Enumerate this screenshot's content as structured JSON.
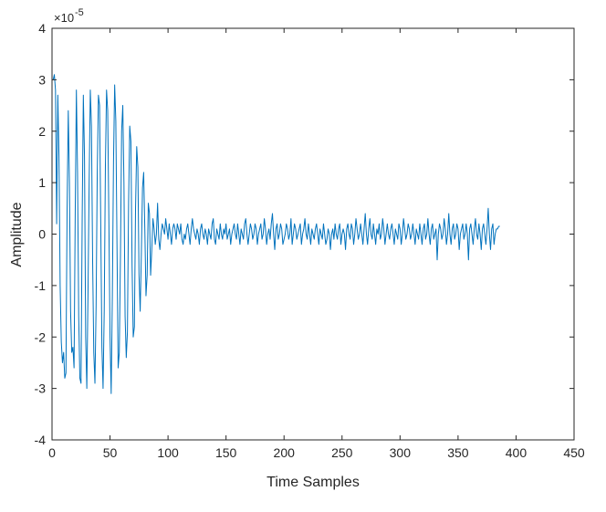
{
  "chart_data": {
    "type": "line",
    "title": "",
    "xlabel": "Time Samples",
    "ylabel": "Amplitude",
    "xlim": [
      0,
      450
    ],
    "ylim": [
      -4,
      4
    ],
    "y_scale_exponent": {
      "base": "×10",
      "exponent": "-5"
    },
    "x_ticks": [
      0,
      50,
      100,
      150,
      200,
      250,
      300,
      350,
      400,
      450
    ],
    "y_ticks": [
      -4,
      -3,
      -2,
      -1,
      0,
      1,
      2,
      3,
      4
    ],
    "grid": false,
    "series": [
      {
        "color": "#0072BD",
        "x_start": 1,
        "values": [
          3.0,
          3.1,
          2.8,
          0.2,
          2.7,
          1.5,
          -1.0,
          -2.1,
          -2.5,
          -2.3,
          -2.8,
          -2.7,
          0.5,
          2.4,
          1.0,
          -1.5,
          -2.3,
          -2.2,
          -2.6,
          0.4,
          2.8,
          1.2,
          -1.6,
          -2.8,
          -2.9,
          0.3,
          2.7,
          1.5,
          -2.0,
          -3.0,
          -1.2,
          1.0,
          2.8,
          2.1,
          -0.5,
          -2.3,
          -2.9,
          -1.4,
          1.2,
          2.7,
          2.5,
          0.2,
          -2.2,
          -3.0,
          -1.5,
          1.3,
          2.8,
          2.4,
          0.3,
          -2.0,
          -3.1,
          -1.2,
          1.4,
          2.9,
          2.2,
          -0.2,
          -2.6,
          -2.3,
          -0.4,
          2.0,
          2.5,
          1.0,
          -1.6,
          -2.4,
          -1.9,
          0.6,
          2.1,
          1.8,
          -0.6,
          -2.0,
          -1.8,
          0.5,
          1.7,
          1.3,
          -0.8,
          -1.5,
          -0.4,
          0.9,
          1.2,
          0.1,
          -1.2,
          -0.8,
          0.6,
          0.4,
          -0.8,
          -0.3,
          0.3,
          0.1,
          -0.2,
          0.0,
          0.6,
          -0.1,
          -0.3,
          0.0,
          0.2,
          0.1,
          0.0,
          0.3,
          0.1,
          -0.1,
          0.2,
          0.0,
          -0.2,
          0.1,
          0.2,
          0.1,
          -0.1,
          0.2,
          0.1,
          0.0,
          0.2,
          -0.1,
          -0.2,
          0.0,
          -0.1,
          0.1,
          0.2,
          0.0,
          -0.2,
          0.1,
          0.3,
          0.1,
          0.0,
          -0.1,
          0.1,
          0.0,
          -0.2,
          0.1,
          0.2,
          0.0,
          -0.1,
          0.1,
          0.0,
          -0.2,
          0.1,
          0.0,
          -0.1,
          0.2,
          0.3,
          -0.1,
          -0.2,
          0.1,
          0.0,
          -0.1,
          0.2,
          0.0,
          -0.1,
          0.1,
          0.0,
          0.2,
          -0.1,
          0.0,
          0.1,
          -0.2,
          0.0,
          0.1,
          0.2,
          0.0,
          -0.1,
          0.2,
          0.0,
          -0.2,
          0.1,
          0.0,
          -0.1,
          0.2,
          0.3,
          0.0,
          -0.2,
          0.0,
          0.2,
          0.1,
          -0.1,
          0.0,
          0.2,
          0.1,
          -0.2,
          0.0,
          0.1,
          0.2,
          -0.1,
          0.0,
          0.3,
          0.1,
          -0.2,
          0.0,
          0.1,
          -0.1,
          0.2,
          0.4,
          0.0,
          -0.3,
          0.1,
          0.2,
          -0.1,
          0.0,
          0.2,
          0.1,
          -0.2,
          -0.1,
          0.0,
          0.2,
          0.1,
          -0.1,
          0.0,
          0.3,
          -0.2,
          0.0,
          0.2,
          0.1,
          -0.1,
          0.0,
          0.1,
          0.2,
          -0.2,
          0.0,
          0.1,
          0.3,
          0.0,
          -0.1,
          0.2,
          0.0,
          -0.2,
          0.1,
          0.0,
          -0.1,
          0.1,
          0.2,
          0.0,
          -0.2,
          0.1,
          0.0,
          -0.1,
          0.2,
          0.0,
          -0.2,
          -0.1,
          0.1,
          0.0,
          -0.3,
          0.0,
          0.1,
          -0.1,
          0.2,
          0.0,
          -0.1,
          0.1,
          0.2,
          -0.2,
          0.0,
          0.1,
          0.0,
          -0.3,
          0.1,
          0.2,
          0.0,
          -0.1,
          0.2,
          0.1,
          -0.2,
          0.0,
          0.3,
          0.1,
          -0.1,
          0.0,
          0.2,
          0.0,
          -0.2,
          0.1,
          0.4,
          0.0,
          -0.2,
          0.1,
          0.3,
          0.0,
          -0.1,
          0.2,
          0.0,
          -0.2,
          0.1,
          0.0,
          0.2,
          -0.1,
          0.0,
          0.3,
          0.1,
          -0.2,
          0.0,
          0.2,
          0.0,
          -0.1,
          0.1,
          0.2,
          0.0,
          -0.2,
          0.1,
          0.0,
          -0.1,
          0.2,
          0.1,
          -0.2,
          0.0,
          0.3,
          0.1,
          -0.1,
          0.0,
          0.2,
          0.1,
          -0.1,
          0.0,
          0.2,
          0.0,
          -0.2,
          0.1,
          0.0,
          -0.1,
          0.2,
          0.0,
          -0.2,
          0.1,
          0.2,
          -0.1,
          0.0,
          0.3,
          0.0,
          -0.2,
          0.1,
          0.2,
          -0.1,
          0.0,
          0.1,
          -0.5,
          0.0,
          0.2,
          0.1,
          -0.1,
          0.0,
          0.3,
          0.1,
          -0.2,
          0.0,
          0.4,
          0.0,
          -0.2,
          0.1,
          0.2,
          -0.1,
          0.0,
          0.2,
          0.1,
          -0.3,
          0.0,
          0.1,
          0.2,
          -0.1,
          0.0,
          0.2,
          0.0,
          -0.5,
          0.1,
          0.2,
          0.0,
          -0.2,
          0.1,
          0.3,
          0.0,
          -0.1,
          0.2,
          0.0,
          -0.3,
          0.1,
          0.2,
          0.0,
          -0.2,
          0.1,
          0.5,
          0.0,
          -0.3,
          0.1,
          0.2,
          -0.2,
          0.0,
          0.1,
          0.1,
          0.15,
          0.15
        ]
      }
    ]
  }
}
